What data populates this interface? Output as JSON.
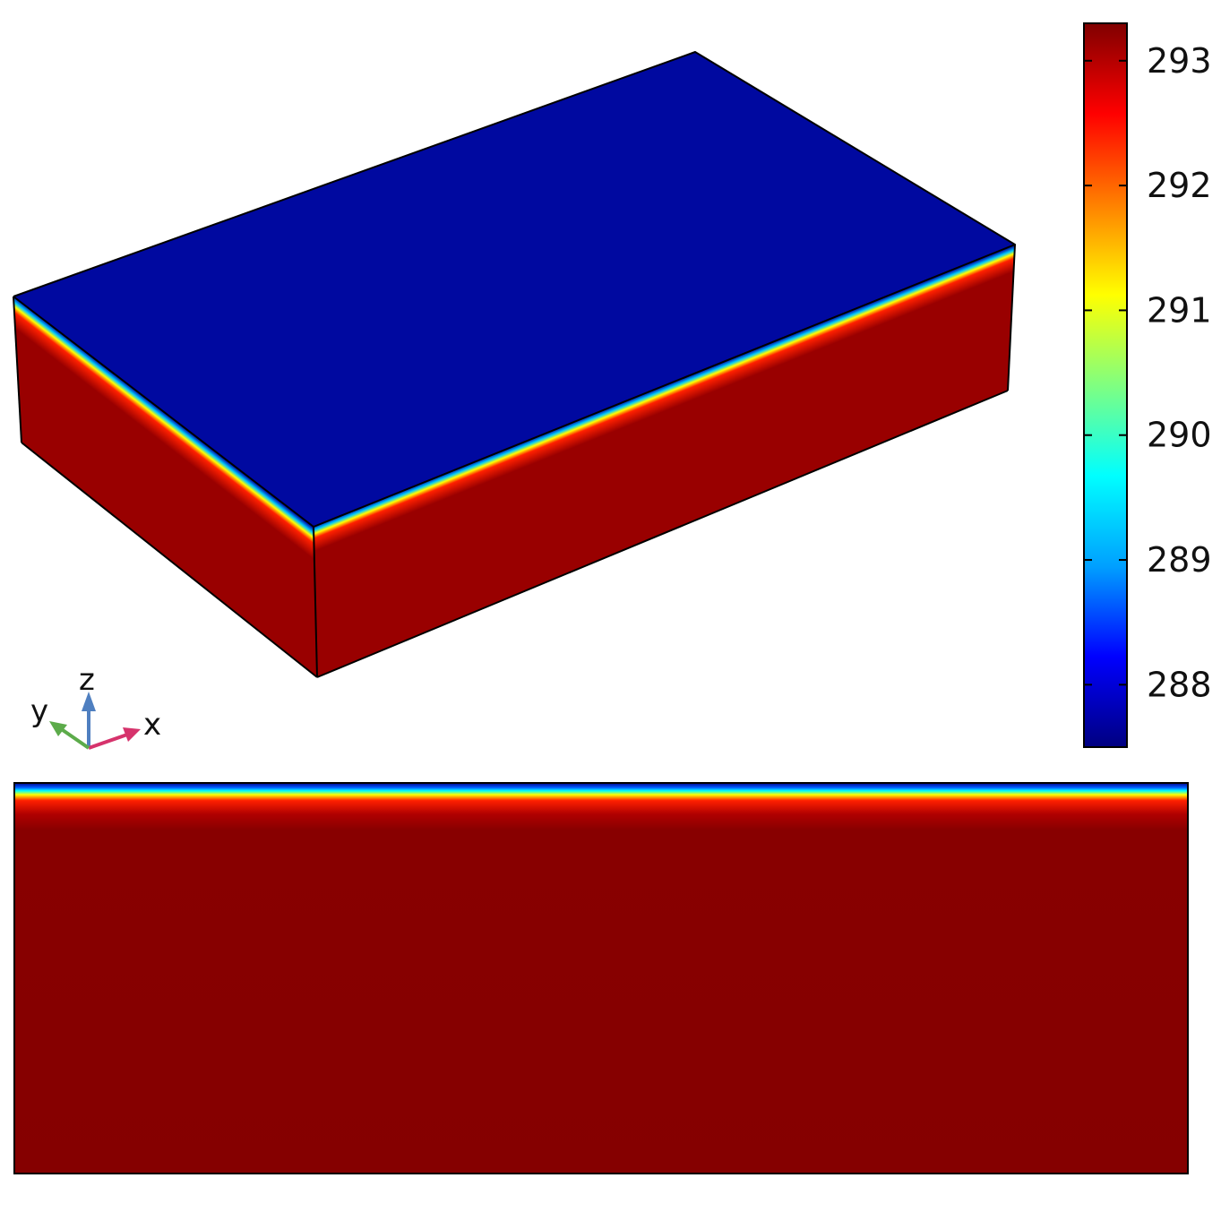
{
  "colorbar": {
    "colormap": "rainbow",
    "range": [
      287.5,
      293.3
    ],
    "ticks": [
      {
        "value": 293,
        "label": "293"
      },
      {
        "value": 292,
        "label": "292"
      },
      {
        "value": 291,
        "label": "291"
      },
      {
        "value": 290,
        "label": "290"
      },
      {
        "value": 289,
        "label": "289"
      },
      {
        "value": 288,
        "label": "288"
      }
    ],
    "stops": [
      "#000080",
      "#0000ff",
      "#00a0ff",
      "#00ffff",
      "#80ff80",
      "#ffff00",
      "#ff8000",
      "#ff0000",
      "#800000"
    ]
  },
  "block": {
    "top_color": "#0009a0",
    "side_color": "#990000",
    "edge_color": "#000000"
  },
  "section": {
    "body_color": "#850000",
    "edge_color": "#000000"
  },
  "axes": {
    "x": {
      "label": "x",
      "color": "#d6336c"
    },
    "y": {
      "label": "y",
      "color": "#5cab4a"
    },
    "z": {
      "label": "z",
      "color": "#4f7fc0"
    }
  }
}
